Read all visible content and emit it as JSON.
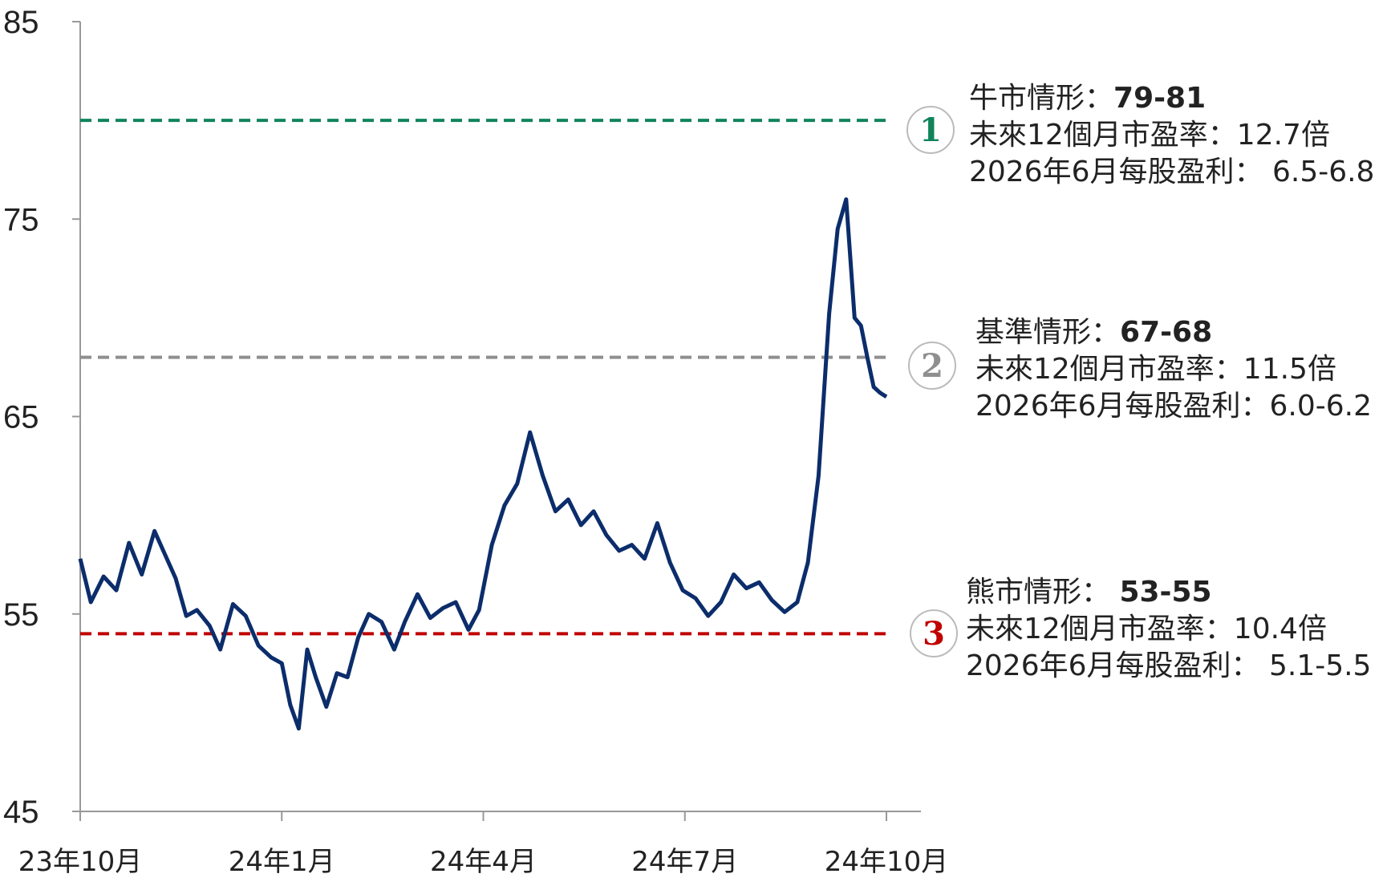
{
  "chart_data": {
    "type": "line",
    "ylim": [
      45,
      85
    ],
    "yticks": [
      "85",
      "75",
      "65",
      "55",
      "45"
    ],
    "xticks": [
      "23年10月",
      "24年1月",
      "24年4月",
      "24年7月",
      "24年10月"
    ],
    "series": [
      {
        "color": "#0c2d6b",
        "x": [
          "2023-10-01",
          "2023-10-06",
          "2023-10-12",
          "2023-10-18",
          "2023-10-24",
          "2023-10-30",
          "2023-11-05",
          "2023-11-10",
          "2023-11-15",
          "2023-11-20",
          "2023-11-25",
          "2023-12-01",
          "2023-12-06",
          "2023-12-12",
          "2023-12-18",
          "2023-12-24",
          "2023-12-30",
          "2024-01-04",
          "2024-01-08",
          "2024-01-12",
          "2024-01-16",
          "2024-01-20",
          "2024-01-25",
          "2024-01-30",
          "2024-02-04",
          "2024-02-09",
          "2024-02-14",
          "2024-02-20",
          "2024-02-26",
          "2024-03-02",
          "2024-03-08",
          "2024-03-14",
          "2024-03-20",
          "2024-03-26",
          "2024-04-01",
          "2024-04-06",
          "2024-04-12",
          "2024-04-18",
          "2024-04-24",
          "2024-04-30",
          "2024-05-06",
          "2024-05-12",
          "2024-05-18",
          "2024-05-24",
          "2024-05-30",
          "2024-06-05",
          "2024-06-11",
          "2024-06-17",
          "2024-06-23",
          "2024-06-29",
          "2024-07-05",
          "2024-07-11",
          "2024-07-17",
          "2024-07-23",
          "2024-07-29",
          "2024-08-04",
          "2024-08-10",
          "2024-08-16",
          "2024-08-22",
          "2024-08-28",
          "2024-09-03",
          "2024-09-08",
          "2024-09-13",
          "2024-09-18",
          "2024-09-22",
          "2024-09-26",
          "2024-09-30",
          "2024-10-03",
          "2024-10-06",
          "2024-10-09",
          "2024-10-12",
          "2024-10-15"
        ],
        "values": [
          57.8,
          55.6,
          56.9,
          56.2,
          58.6,
          57.0,
          59.2,
          58.0,
          56.8,
          54.9,
          55.2,
          54.4,
          53.2,
          55.5,
          54.9,
          53.4,
          52.8,
          52.5,
          50.4,
          49.2,
          53.2,
          51.8,
          50.3,
          52.0,
          51.8,
          53.8,
          55.0,
          54.6,
          53.2,
          54.6,
          56.0,
          54.8,
          55.3,
          55.6,
          54.2,
          55.2,
          58.5,
          60.5,
          61.6,
          64.2,
          62.0,
          60.2,
          60.8,
          59.5,
          60.2,
          59.0,
          58.2,
          58.5,
          57.8,
          59.6,
          57.6,
          56.2,
          55.8,
          54.9,
          55.6,
          57.0,
          56.3,
          56.6,
          55.7,
          55.1,
          55.6,
          57.6,
          62.0,
          70.2,
          74.5,
          76.0,
          70.0,
          69.6,
          68.0,
          66.5,
          66.2,
          66.0
        ],
        "dash": "solid"
      }
    ],
    "reference_lines": [
      {
        "value": 80,
        "color": "#11845b"
      },
      {
        "value": 68,
        "color": "#8f8f8f"
      },
      {
        "value": 54,
        "color": "#c00000"
      }
    ],
    "annotations": [
      {
        "badge": "1",
        "badge_color": "#11845b",
        "name": "牛市情形：",
        "range": "79-81",
        "pe": "未來12個月市盈率：12.7倍",
        "eps": "2026年6月每股盈利： 6.5-6.8"
      },
      {
        "badge": "2",
        "badge_color": "#8f8f8f",
        "name": "基準情形：",
        "range": "67-68",
        "pe": "未來12個月市盈率：11.5倍",
        "eps": "2026年6月每股盈利：6.0-6.2"
      },
      {
        "badge": "3",
        "badge_color": "#c00000",
        "name": "熊市情形： ",
        "range": "53-55",
        "pe": "未來12個月市盈率：10.4倍",
        "eps": "2026年6月每股盈利： 5.1-5.5"
      }
    ]
  }
}
